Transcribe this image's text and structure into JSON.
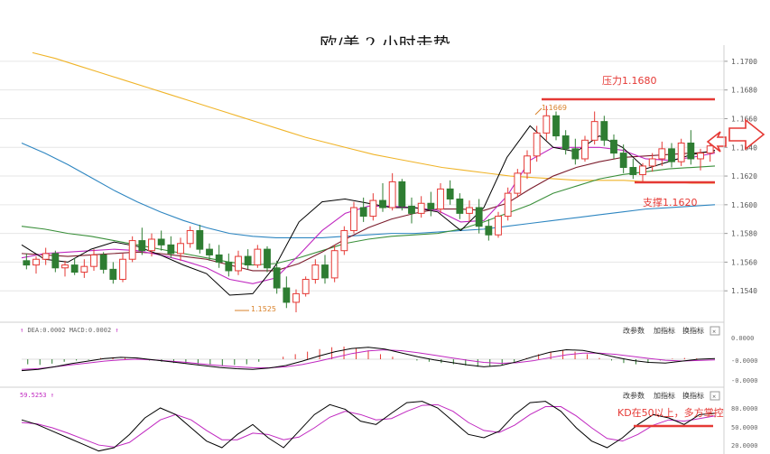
{
  "title": "欧/美 2 小时走势",
  "colors": {
    "up": "#e53935",
    "down": "#2e7d32",
    "ma_black": "#000000",
    "ma_magenta": "#c028c0",
    "ma_maroon": "#7b1c2c",
    "ma_green": "#3a8f3a",
    "ma_blue": "#2e86c1",
    "ma_orange": "#f0b429",
    "annot_red": "#e53935",
    "grid": "#e6e6e6"
  },
  "price_panel": {
    "ylim": [
      1.152,
      1.171
    ],
    "y_ticks": [
      "1.1700",
      "1.1680",
      "1.1660",
      "1.1640",
      "1.1620",
      "1.1600",
      "1.1580",
      "1.1560",
      "1.1540"
    ],
    "low_label": "1.1525",
    "high_label": "1.1669",
    "resistance": {
      "label": "压力1.1680",
      "value": 1.168
    },
    "support": {
      "label": "支撑1.1620",
      "value": 1.1618
    }
  },
  "macd_panel": {
    "header_left": "DEA:0.0002 MACD:0.0002",
    "buttons": [
      "改参数",
      "加指标",
      "换指标"
    ],
    "close": "×",
    "y_ticks": [
      "0.0000",
      "-0.0000",
      "-0.0000"
    ]
  },
  "kd_panel": {
    "header_left": "59.5253",
    "buttons": [
      "改参数",
      "加指标",
      "换指标"
    ],
    "close": "×",
    "y_ticks": [
      "80.0000",
      "50.0000",
      "20.0000"
    ],
    "annotation": "KD在50以上，多方掌控"
  },
  "chart_data": {
    "type": "candlestick",
    "candles": [
      [
        1.1561,
        1.1566,
        1.1555,
        1.1558
      ],
      [
        1.1558,
        1.1564,
        1.1552,
        1.1562
      ],
      [
        1.1562,
        1.157,
        1.1558,
        1.1566
      ],
      [
        1.1566,
        1.1568,
        1.1553,
        1.1556
      ],
      [
        1.1556,
        1.1561,
        1.155,
        1.1558
      ],
      [
        1.1558,
        1.1563,
        1.1551,
        1.1553
      ],
      [
        1.1553,
        1.1562,
        1.1549,
        1.1557
      ],
      [
        1.1557,
        1.1569,
        1.1554,
        1.1565
      ],
      [
        1.1565,
        1.1567,
        1.1552,
        1.1555
      ],
      [
        1.1555,
        1.156,
        1.1545,
        1.1548
      ],
      [
        1.1548,
        1.1566,
        1.1546,
        1.1562
      ],
      [
        1.1562,
        1.1578,
        1.156,
        1.1575
      ],
      [
        1.1575,
        1.1584,
        1.1565,
        1.1568
      ],
      [
        1.1568,
        1.158,
        1.1564,
        1.1576
      ],
      [
        1.1576,
        1.1582,
        1.1568,
        1.1572
      ],
      [
        1.1572,
        1.1578,
        1.1563,
        1.1566
      ],
      [
        1.1566,
        1.1577,
        1.1561,
        1.1573
      ],
      [
        1.1573,
        1.1585,
        1.157,
        1.1582
      ],
      [
        1.1582,
        1.1586,
        1.1566,
        1.1569
      ],
      [
        1.1569,
        1.1573,
        1.1561,
        1.1565
      ],
      [
        1.1565,
        1.1572,
        1.1556,
        1.156
      ],
      [
        1.156,
        1.1566,
        1.155,
        1.1554
      ],
      [
        1.1554,
        1.1568,
        1.1551,
        1.1564
      ],
      [
        1.1564,
        1.1569,
        1.1555,
        1.1558
      ],
      [
        1.1558,
        1.1572,
        1.1556,
        1.1569
      ],
      [
        1.1569,
        1.1571,
        1.1553,
        1.1556
      ],
      [
        1.1556,
        1.1561,
        1.1538,
        1.1542
      ],
      [
        1.1542,
        1.155,
        1.1528,
        1.1532
      ],
      [
        1.1532,
        1.1541,
        1.1525,
        1.1538
      ],
      [
        1.1538,
        1.155,
        1.1536,
        1.1548
      ],
      [
        1.1548,
        1.1562,
        1.1545,
        1.1558
      ],
      [
        1.1558,
        1.1565,
        1.1545,
        1.1549
      ],
      [
        1.1549,
        1.1572,
        1.1546,
        1.1568
      ],
      [
        1.1568,
        1.1585,
        1.1565,
        1.1582
      ],
      [
        1.1582,
        1.1602,
        1.158,
        1.1598
      ],
      [
        1.1598,
        1.1605,
        1.1588,
        1.1592
      ],
      [
        1.1592,
        1.1608,
        1.1589,
        1.1603
      ],
      [
        1.1603,
        1.1615,
        1.1595,
        1.1598
      ],
      [
        1.1598,
        1.1622,
        1.1596,
        1.1616
      ],
      [
        1.1616,
        1.1618,
        1.1596,
        1.1599
      ],
      [
        1.1599,
        1.1605,
        1.1587,
        1.1594
      ],
      [
        1.1594,
        1.1606,
        1.1591,
        1.1601
      ],
      [
        1.1601,
        1.1609,
        1.1592,
        1.1597
      ],
      [
        1.1597,
        1.1615,
        1.1594,
        1.1611
      ],
      [
        1.1611,
        1.1617,
        1.16,
        1.1604
      ],
      [
        1.1604,
        1.1608,
        1.159,
        1.1594
      ],
      [
        1.1594,
        1.1603,
        1.1588,
        1.1598
      ],
      [
        1.1598,
        1.1604,
        1.158,
        1.1585
      ],
      [
        1.1585,
        1.159,
        1.1575,
        1.1579
      ],
      [
        1.1579,
        1.1595,
        1.1577,
        1.1592
      ],
      [
        1.1592,
        1.1612,
        1.1589,
        1.1608
      ],
      [
        1.1608,
        1.1625,
        1.1605,
        1.1622
      ],
      [
        1.1622,
        1.1638,
        1.1618,
        1.1634
      ],
      [
        1.1634,
        1.1655,
        1.163,
        1.165
      ],
      [
        1.165,
        1.1669,
        1.1645,
        1.1662
      ],
      [
        1.1662,
        1.1665,
        1.1645,
        1.1648
      ],
      [
        1.1648,
        1.1652,
        1.1635,
        1.1639
      ],
      [
        1.1639,
        1.1646,
        1.1628,
        1.1632
      ],
      [
        1.1632,
        1.1648,
        1.163,
        1.1645
      ],
      [
        1.1645,
        1.1665,
        1.1642,
        1.1658
      ],
      [
        1.1658,
        1.1662,
        1.1641,
        1.1645
      ],
      [
        1.1645,
        1.1649,
        1.1632,
        1.1636
      ],
      [
        1.1636,
        1.1642,
        1.1622,
        1.1626
      ],
      [
        1.1626,
        1.1632,
        1.1618,
        1.1621
      ],
      [
        1.1621,
        1.1629,
        1.1615,
        1.1627
      ],
      [
        1.1627,
        1.1636,
        1.1623,
        1.1632
      ],
      [
        1.1632,
        1.1644,
        1.1627,
        1.1639
      ],
      [
        1.1639,
        1.1643,
        1.1626,
        1.163
      ],
      [
        1.163,
        1.1646,
        1.1627,
        1.1643
      ],
      [
        1.1643,
        1.1652,
        1.1628,
        1.1632
      ],
      [
        1.1632,
        1.1639,
        1.1624,
        1.1636
      ],
      [
        1.1636,
        1.1645,
        1.163,
        1.1641
      ]
    ],
    "low_annotation": "1.1525",
    "high_annotation": "1.1669",
    "resistance": 1.168,
    "support": 1.1618,
    "ma_lines": {
      "black": [
        1.1572,
        1.1562,
        1.156,
        1.1569,
        1.1574,
        1.1571,
        1.1565,
        1.1558,
        1.1552,
        1.1537,
        1.1538,
        1.1558,
        1.1588,
        1.1602,
        1.1604,
        1.1601,
        1.1598,
        1.1598,
        1.1595,
        1.1582,
        1.1598,
        1.1633,
        1.1655,
        1.164,
        1.1637,
        1.1648,
        1.164,
        1.1625,
        1.163,
        1.1635,
        1.1638
      ],
      "magenta": [
        1.1563,
        1.1566,
        1.1567,
        1.1568,
        1.1569,
        1.1568,
        1.1565,
        1.1561,
        1.1556,
        1.1548,
        1.1545,
        1.1549,
        1.1565,
        1.1582,
        1.1594,
        1.1599,
        1.1599,
        1.1598,
        1.1596,
        1.1588,
        1.1589,
        1.1606,
        1.1631,
        1.164,
        1.164,
        1.164,
        1.1638,
        1.1632,
        1.1631,
        1.1633,
        1.1636
      ],
      "maroon": [
        1.1566,
        1.1565,
        1.1564,
        1.1565,
        1.1566,
        1.1567,
        1.1566,
        1.1564,
        1.1562,
        1.1558,
        1.1554,
        1.1554,
        1.1559,
        1.1567,
        1.1576,
        1.1584,
        1.159,
        1.1594,
        1.1597,
        1.1597,
        1.1596,
        1.1601,
        1.1611,
        1.162,
        1.1626,
        1.163,
        1.1633,
        1.1634,
        1.1635,
        1.1636,
        1.1637
      ],
      "green": [
        1.1585,
        1.1583,
        1.158,
        1.1578,
        1.1575,
        1.1572,
        1.1569,
        1.1566,
        1.1563,
        1.156,
        1.1558,
        1.1559,
        1.1563,
        1.1568,
        1.1573,
        1.1576,
        1.1578,
        1.1579,
        1.158,
        1.1583,
        1.1588,
        1.1594,
        1.16,
        1.1608,
        1.1613,
        1.1618,
        1.1621,
        1.1623,
        1.1625,
        1.1626,
        1.1627
      ],
      "blue": [
        1.1643,
        1.1636,
        1.1628,
        1.1619,
        1.161,
        1.1602,
        1.1595,
        1.1589,
        1.1584,
        1.158,
        1.1578,
        1.1577,
        1.1577,
        1.1577,
        1.1578,
        1.1579,
        1.158,
        1.158,
        1.1581,
        1.1582,
        1.1583,
        1.1585,
        1.1587,
        1.1589,
        1.1591,
        1.1593,
        1.1595,
        1.1597,
        1.1598,
        1.1599,
        1.16
      ],
      "orange": [
        1.1706,
        1.1702,
        1.1697,
        1.1692,
        1.1687,
        1.1682,
        1.1677,
        1.1672,
        1.1667,
        1.1662,
        1.1657,
        1.1652,
        1.1647,
        1.1643,
        1.1639,
        1.1635,
        1.1632,
        1.1629,
        1.1626,
        1.1624,
        1.1622,
        1.162,
        1.1619,
        1.1618,
        1.1617,
        1.1617,
        1.1617,
        1.1616,
        1.1616,
        1.1615,
        1.1615
      ]
    },
    "macd": {
      "hist": [
        -0.4,
        -0.45,
        -0.35,
        -0.2,
        -0.1,
        -0.05,
        0.1,
        0.15,
        0.1,
        0.05,
        -0.1,
        -0.2,
        -0.3,
        -0.35,
        -0.4,
        -0.45,
        -0.5,
        -0.45,
        -0.4,
        -0.2,
        0.0,
        0.2,
        0.4,
        0.6,
        0.8,
        0.95,
        1.0,
        0.9,
        0.7,
        0.4,
        0.2,
        0.0,
        -0.1,
        -0.2,
        -0.3,
        -0.4,
        -0.5,
        -0.6,
        -0.55,
        -0.45,
        -0.2,
        0.1,
        0.4,
        0.6,
        0.7,
        0.6,
        0.4,
        0.1,
        -0.1,
        -0.3,
        -0.4,
        -0.3,
        -0.1,
        0.05,
        0.1,
        0.08,
        0.05
      ],
      "dif": [
        -0.9,
        -0.8,
        -0.6,
        -0.35,
        -0.15,
        0.05,
        0.15,
        0.1,
        -0.05,
        -0.2,
        -0.35,
        -0.5,
        -0.65,
        -0.75,
        -0.8,
        -0.7,
        -0.5,
        -0.15,
        0.25,
        0.6,
        0.85,
        0.95,
        0.8,
        0.5,
        0.2,
        -0.05,
        -0.25,
        -0.45,
        -0.6,
        -0.5,
        -0.2,
        0.2,
        0.55,
        0.75,
        0.7,
        0.45,
        0.15,
        -0.1,
        -0.25,
        -0.3,
        -0.15,
        0.0,
        0.05
      ],
      "dea": [
        -0.8,
        -0.75,
        -0.6,
        -0.45,
        -0.3,
        -0.15,
        -0.05,
        0.0,
        -0.05,
        -0.15,
        -0.25,
        -0.38,
        -0.5,
        -0.6,
        -0.67,
        -0.68,
        -0.6,
        -0.42,
        -0.15,
        0.15,
        0.45,
        0.66,
        0.74,
        0.68,
        0.52,
        0.32,
        0.12,
        -0.08,
        -0.25,
        -0.32,
        -0.28,
        -0.12,
        0.12,
        0.35,
        0.48,
        0.48,
        0.38,
        0.22,
        0.06,
        -0.08,
        -0.14,
        -0.1,
        -0.05
      ]
    },
    "kd": {
      "k": [
        62,
        55,
        45,
        35,
        25,
        15,
        20,
        40,
        65,
        80,
        70,
        50,
        30,
        20,
        40,
        55,
        35,
        20,
        45,
        70,
        85,
        78,
        60,
        55,
        72,
        88,
        90,
        80,
        60,
        40,
        35,
        45,
        70,
        88,
        90,
        75,
        50,
        30,
        20,
        35,
        55,
        70,
        65,
        55,
        70,
        72
      ],
      "d": [
        58,
        56,
        50,
        42,
        33,
        24,
        21,
        28,
        45,
        62,
        70,
        62,
        46,
        32,
        32,
        42,
        40,
        32,
        36,
        50,
        66,
        75,
        70,
        62,
        64,
        75,
        84,
        85,
        75,
        58,
        46,
        43,
        54,
        70,
        82,
        82,
        68,
        50,
        34,
        30,
        40,
        54,
        62,
        60,
        64,
        68
      ]
    }
  }
}
